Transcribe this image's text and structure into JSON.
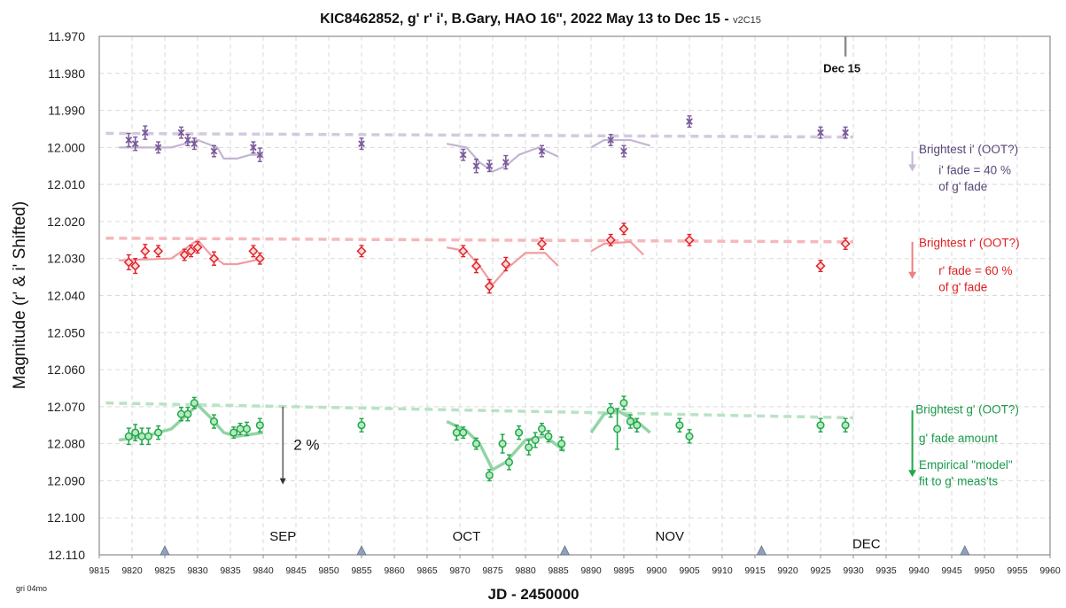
{
  "chart_data": {
    "type": "scatter",
    "title": "KIC8462852, g' r' i', B.Gary, HAO 16\", 2022 May 13 to  Dec 15 - ",
    "title_version": "v2C15",
    "xlabel": "JD - 2450000",
    "ylabel": "Magnitude  (r' & i' Shifted)",
    "xlim": [
      9815,
      9960
    ],
    "ylim": [
      11.97,
      12.11
    ],
    "y_inverted": true,
    "grid": true,
    "x_ticks": [
      9815,
      9820,
      9825,
      9830,
      9835,
      9840,
      9845,
      9850,
      9855,
      9860,
      9865,
      9870,
      9875,
      9880,
      9885,
      9890,
      9895,
      9900,
      9905,
      9910,
      9915,
      9920,
      9925,
      9930,
      9935,
      9940,
      9945,
      9950,
      9955,
      9960
    ],
    "y_ticks": [
      "11.970",
      "11.980",
      "11.990",
      "12.000",
      "12.010",
      "12.020",
      "12.030",
      "12.040",
      "12.050",
      "12.060",
      "12.070",
      "12.080",
      "12.090",
      "12.100",
      "12.110"
    ],
    "month_markers": [
      9825,
      9855,
      9886,
      9916,
      9947
    ],
    "month_labels": [
      {
        "text": "SEP",
        "x": 9843,
        "y": 12.105
      },
      {
        "text": "OCT",
        "x": 9871,
        "y": 12.105
      },
      {
        "text": "NOV",
        "x": 9902,
        "y": 12.105
      },
      {
        "text": "DEC",
        "x": 9932,
        "y": 12.107
      }
    ],
    "marker_line": {
      "label": "Dec 15",
      "x": 9928.8,
      "y_top": 11.97,
      "y_bottom": 11.974
    },
    "pct_arrow": {
      "label": "2 %",
      "x": 9843,
      "y_from": 12.07,
      "y_to": 12.091
    },
    "series": [
      {
        "name": "i'",
        "color": "#7a5a9a",
        "points": [
          [
            9819.5,
            11.998,
            0.0018
          ],
          [
            9820.5,
            11.999,
            0.0018
          ],
          [
            9822,
            11.996,
            0.0018
          ],
          [
            9824,
            12.0,
            0.0015
          ],
          [
            9827.5,
            11.996,
            0.0015
          ],
          [
            9828.5,
            11.998,
            0.0015
          ],
          [
            9829.5,
            11.999,
            0.0015
          ],
          [
            9832.5,
            12.001,
            0.0015
          ],
          [
            9838.5,
            12.0,
            0.0015
          ],
          [
            9839.5,
            12.002,
            0.0018
          ],
          [
            9855,
            11.999,
            0.0015
          ],
          [
            9870.5,
            12.002,
            0.0015
          ],
          [
            9872.5,
            12.005,
            0.0018
          ],
          [
            9874.5,
            12.005,
            0.0015
          ],
          [
            9877,
            12.004,
            0.0018
          ],
          [
            9882.5,
            12.001,
            0.0015
          ],
          [
            9893,
            11.998,
            0.0015
          ],
          [
            9895,
            12.001,
            0.0015
          ],
          [
            9905,
            11.993,
            0.0015
          ],
          [
            9925,
            11.996,
            0.0015
          ],
          [
            9928.8,
            11.996,
            0.0015
          ]
        ],
        "model": [
          [
            [
              9818,
              12.0
            ],
            [
              9826,
              12.0
            ],
            [
              9830,
              11.998
            ],
            [
              9833,
              12.0
            ],
            [
              9834,
              12.003
            ],
            [
              9836,
              12.003
            ],
            [
              9838,
              12.002
            ],
            [
              9840,
              12.002
            ]
          ],
          [
            [
              9868,
              11.999
            ],
            [
              9871,
              12.0
            ],
            [
              9873,
              12.004
            ],
            [
              9875,
              12.0065
            ],
            [
              9877,
              12.005
            ],
            [
              9879,
              12.002
            ],
            [
              9882,
              12.0
            ],
            [
              9885,
              12.0025
            ]
          ],
          [
            [
              9890,
              12.0
            ],
            [
              9892,
              11.998
            ],
            [
              9896,
              11.998
            ],
            [
              9899,
              11.9995
            ]
          ]
        ],
        "oot": [
          [
            9816,
            11.9962
          ],
          [
            9930,
            11.9972
          ]
        ],
        "arrow": {
          "x": 9939,
          "y_from": 12.001,
          "y_to": 12.0065,
          "color": "#c8b8d4"
        },
        "notes": [
          {
            "text": "Brightest i' (OOT?)",
            "x": 9940,
            "y": 12.0004,
            "color": "#5a4678"
          },
          {
            "text": "i' fade = 40 %",
            "x": 9943,
            "y": 12.006,
            "color": "#5a4678"
          },
          {
            "text": "of g' fade",
            "x": 9943,
            "y": 12.0104,
            "color": "#5a4678"
          }
        ]
      },
      {
        "name": "r'",
        "color": "#e0242b",
        "points": [
          [
            9819.5,
            12.031,
            0.002
          ],
          [
            9820.5,
            12.032,
            0.002
          ],
          [
            9822,
            12.028,
            0.0018
          ],
          [
            9824,
            12.028,
            0.0015
          ],
          [
            9828,
            12.029,
            0.0015
          ],
          [
            9829,
            12.028,
            0.0015
          ],
          [
            9830,
            12.027,
            0.0015
          ],
          [
            9832.5,
            12.03,
            0.0018
          ],
          [
            9838.5,
            12.028,
            0.0015
          ],
          [
            9839.5,
            12.03,
            0.0015
          ],
          [
            9855,
            12.028,
            0.0015
          ],
          [
            9870.5,
            12.028,
            0.0015
          ],
          [
            9872.5,
            12.032,
            0.0018
          ],
          [
            9874.5,
            12.0375,
            0.0018
          ],
          [
            9877,
            12.0315,
            0.0018
          ],
          [
            9882.5,
            12.026,
            0.0015
          ],
          [
            9893,
            12.025,
            0.0015
          ],
          [
            9895,
            12.022,
            0.0015
          ],
          [
            9905,
            12.025,
            0.0015
          ],
          [
            9925,
            12.032,
            0.0015
          ],
          [
            9928.8,
            12.026,
            0.0015
          ]
        ],
        "model": [
          [
            [
              9818,
              12.0305
            ],
            [
              9826,
              12.03
            ],
            [
              9830,
              12.025
            ],
            [
              9832,
              12.029
            ],
            [
              9834,
              12.0315
            ],
            [
              9836,
              12.0315
            ],
            [
              9840,
              12.03
            ]
          ],
          [
            [
              9868,
              12.027
            ],
            [
              9871,
              12.028
            ],
            [
              9873,
              12.032
            ],
            [
              9875,
              12.037
            ],
            [
              9877,
              12.033
            ],
            [
              9880,
              12.0285
            ],
            [
              9883,
              12.0285
            ],
            [
              9885,
              12.032
            ]
          ],
          [
            [
              9890,
              12.028
            ],
            [
              9892,
              12.026
            ],
            [
              9896,
              12.0255
            ],
            [
              9898,
              12.029
            ]
          ]
        ],
        "oot": [
          [
            9816,
            12.0245
          ],
          [
            9930,
            12.0255
          ]
        ],
        "arrow": {
          "x": 9939,
          "y_from": 12.0255,
          "y_to": 12.0355,
          "color": "#ee8080"
        },
        "notes": [
          {
            "text": "Brightest r' (OOT?)",
            "x": 9940,
            "y": 12.0257,
            "color": "#e02020"
          },
          {
            "text": "r' fade = 60 %",
            "x": 9943,
            "y": 12.0332,
            "color": "#e02020"
          },
          {
            "text": "of g' fade",
            "x": 9943,
            "y": 12.0376,
            "color": "#e02020"
          }
        ]
      },
      {
        "name": "g'",
        "color": "#22a84a",
        "points": [
          [
            9819.5,
            12.078,
            0.0022
          ],
          [
            9820.5,
            12.077,
            0.0022
          ],
          [
            9821.5,
            12.078,
            0.0022
          ],
          [
            9822.5,
            12.078,
            0.0022
          ],
          [
            9824,
            12.077,
            0.0018
          ],
          [
            9827.5,
            12.072,
            0.0018
          ],
          [
            9828.5,
            12.072,
            0.0018
          ],
          [
            9829.5,
            12.069,
            0.0015
          ],
          [
            9832.5,
            12.074,
            0.0018
          ],
          [
            9835.5,
            12.077,
            0.0015
          ],
          [
            9836.5,
            12.076,
            0.0015
          ],
          [
            9837.5,
            12.076,
            0.0018
          ],
          [
            9839.5,
            12.075,
            0.0018
          ],
          [
            9855,
            12.075,
            0.0018
          ],
          [
            9869.5,
            12.077,
            0.002
          ],
          [
            9870.5,
            12.077,
            0.0015
          ],
          [
            9872.5,
            12.08,
            0.0015
          ],
          [
            9874.5,
            12.0885,
            0.0015
          ],
          [
            9876.5,
            12.08,
            0.0025
          ],
          [
            9877.5,
            12.085,
            0.002
          ],
          [
            9879,
            12.077,
            0.0018
          ],
          [
            9880.5,
            12.081,
            0.002
          ],
          [
            9881.5,
            12.079,
            0.002
          ],
          [
            9882.5,
            12.076,
            0.0015
          ],
          [
            9883.5,
            12.078,
            0.0015
          ],
          [
            9885.5,
            12.08,
            0.0018
          ],
          [
            9893,
            12.071,
            0.0018
          ],
          [
            9894,
            12.076,
            0.0055
          ],
          [
            9895,
            12.069,
            0.0018
          ],
          [
            9896,
            12.074,
            0.0018
          ],
          [
            9897,
            12.075,
            0.0018
          ],
          [
            9903.5,
            12.075,
            0.0018
          ],
          [
            9905,
            12.078,
            0.0018
          ],
          [
            9925,
            12.075,
            0.0018
          ],
          [
            9928.8,
            12.075,
            0.0018
          ]
        ],
        "model": [
          [
            [
              9818,
              12.079
            ],
            [
              9822,
              12.078
            ],
            [
              9826,
              12.076
            ],
            [
              9830,
              12.0695
            ],
            [
              9832,
              12.073
            ],
            [
              9834,
              12.077
            ],
            [
              9836,
              12.078
            ],
            [
              9840,
              12.077
            ]
          ],
          [
            [
              9868,
              12.074
            ],
            [
              9871,
              12.0765
            ],
            [
              9873,
              12.08
            ],
            [
              9875,
              12.087
            ],
            [
              9877,
              12.085
            ],
            [
              9880,
              12.079
            ],
            [
              9883,
              12.078
            ],
            [
              9886,
              12.082
            ]
          ],
          [
            [
              9890,
              12.077
            ],
            [
              9892,
              12.072
            ],
            [
              9894,
              12.071
            ],
            [
              9897,
              12.074
            ],
            [
              9899,
              12.077
            ]
          ]
        ],
        "oot": [
          [
            9816,
            12.069
          ],
          [
            9930,
            12.073
          ]
        ],
        "arrow": {
          "x": 9939,
          "y_from": 12.071,
          "y_to": 12.089,
          "color": "#22a84a"
        },
        "notes": [
          {
            "text": "Brightest g' (OOT?)",
            "x": 9939.5,
            "y": 12.0706,
            "color": "#1a9a4a"
          },
          {
            "text": "g' fade amount",
            "x": 9940,
            "y": 12.0784,
            "color": "#1a9a4a"
          },
          {
            "text": "Empirical \"model\"",
            "x": 9940,
            "y": 12.0856,
            "color": "#1a9a4a"
          },
          {
            "text": "fit to g' meas'ts",
            "x": 9940,
            "y": 12.09,
            "color": "#1a9a4a"
          }
        ]
      }
    ]
  },
  "footer_note": "gri 04mo"
}
